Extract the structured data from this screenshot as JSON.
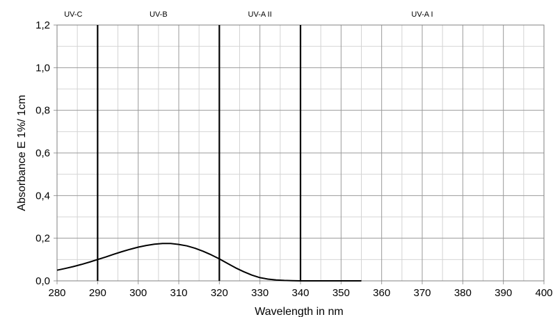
{
  "chart_data": {
    "type": "line",
    "xlabel": "Wavelength in nm",
    "ylabel": "Absorbance E 1%/ 1cm",
    "xlim": [
      280,
      400
    ],
    "ylim": [
      0,
      1.2
    ],
    "x_ticks": [
      280,
      290,
      300,
      310,
      320,
      330,
      340,
      350,
      360,
      370,
      380,
      390,
      400
    ],
    "x_tick_labels": [
      "280",
      "290",
      "300",
      "310",
      "320",
      "330",
      "340",
      "350",
      "360",
      "370",
      "380",
      "390",
      "400"
    ],
    "y_ticks": [
      0,
      0.2,
      0.4,
      0.6,
      0.8,
      1.0,
      1.2
    ],
    "y_tick_labels": [
      "0,0",
      "0,2",
      "0,4",
      "0,6",
      "0,8",
      "1,0",
      "1,2"
    ],
    "x_minor_step": 5,
    "y_minor_step": 0.1,
    "grid": true,
    "series": [
      {
        "x": [
          280,
          282,
          284,
          286,
          288,
          290,
          292,
          294,
          296,
          298,
          300,
          302,
          304,
          306,
          308,
          310,
          312,
          314,
          316,
          318,
          320,
          322,
          324,
          326,
          328,
          330,
          332,
          334,
          336,
          338,
          340,
          345,
          350,
          355
        ],
        "y": [
          0.05,
          0.058,
          0.067,
          0.077,
          0.088,
          0.1,
          0.112,
          0.125,
          0.137,
          0.148,
          0.158,
          0.166,
          0.172,
          0.175,
          0.175,
          0.171,
          0.164,
          0.153,
          0.139,
          0.122,
          0.103,
          0.082,
          0.061,
          0.043,
          0.027,
          0.015,
          0.008,
          0.004,
          0.002,
          0.001,
          0.0,
          0.0,
          0.0,
          0.0
        ]
      }
    ],
    "boundaries": [
      290,
      320,
      340
    ],
    "bands": [
      {
        "label": "UV-C",
        "x": 284
      },
      {
        "label": "UV-B",
        "x": 305
      },
      {
        "label": "UV-A II",
        "x": 330
      },
      {
        "label": "UV-A I",
        "x": 370
      }
    ],
    "colors": {
      "line": "#000000",
      "grid_major": "#9a9a9a",
      "grid_minor": "#d4d4d4",
      "axis": "#808080",
      "boundary": "#000000"
    }
  }
}
